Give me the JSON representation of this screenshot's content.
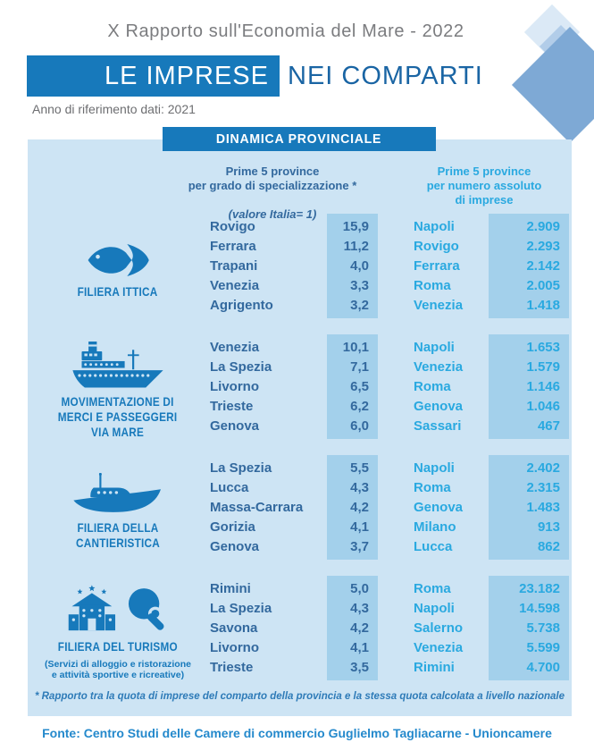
{
  "page": {
    "report_title": "X Rapporto sull'Economia del Mare - 2022",
    "banner": {
      "highlight": "LE IMPRESE",
      "rest": "NEI COMPARTI"
    },
    "reference_note": "Anno di riferimento dati: 2021",
    "panel_title": "DINAMICA PROVINCIALE",
    "col_left_header": "Prime 5 province\nper grado di specializzazione *",
    "col_left_header_note": "(valore Italia= 1)",
    "col_right_header": "Prime 5 province\nper numero assoluto\ndi imprese",
    "footnote": "* Rapporto tra la quota di imprese del comparto della provincia e la stessa quota calcolata a livello nazionale",
    "source": "Fonte: Centro Studi delle Camere di commercio Guglielmo Tagliacarne - Unioncamere"
  },
  "sections": [
    {
      "label": "FILIERA ITTICA",
      "sublabel": "",
      "icon": "fish-icon",
      "specializzazione": [
        [
          "Rovigo",
          "15,9"
        ],
        [
          "Ferrara",
          "11,2"
        ],
        [
          "Trapani",
          "4,0"
        ],
        [
          "Venezia",
          "3,3"
        ],
        [
          "Agrigento",
          "3,2"
        ]
      ],
      "numero_imprese": [
        [
          "Napoli",
          "2.909"
        ],
        [
          "Rovigo",
          "2.293"
        ],
        [
          "Ferrara",
          "2.142"
        ],
        [
          "Roma",
          "2.005"
        ],
        [
          "Venezia",
          "1.418"
        ]
      ]
    },
    {
      "label": "MOVIMENTAZIONE DI\nMERCI E PASSEGGERI\nVIA MARE",
      "sublabel": "",
      "icon": "ferry-icon",
      "specializzazione": [
        [
          "Venezia",
          "10,1"
        ],
        [
          "La Spezia",
          "7,1"
        ],
        [
          "Livorno",
          "6,5"
        ],
        [
          "Trieste",
          "6,2"
        ],
        [
          "Genova",
          "6,0"
        ]
      ],
      "numero_imprese": [
        [
          "Napoli",
          "1.653"
        ],
        [
          "Venezia",
          "1.579"
        ],
        [
          "Roma",
          "1.146"
        ],
        [
          "Genova",
          "1.046"
        ],
        [
          "Sassari",
          "467"
        ]
      ]
    },
    {
      "label": "FILIERA DELLA\nCANTIERISTICA",
      "sublabel": "",
      "icon": "yacht-icon",
      "specializzazione": [
        [
          "La Spezia",
          "5,5"
        ],
        [
          "Lucca",
          "4,3"
        ],
        [
          "Massa-Carrara",
          "4,2"
        ],
        [
          "Gorizia",
          "4,1"
        ],
        [
          "Genova",
          "3,7"
        ]
      ],
      "numero_imprese": [
        [
          "Napoli",
          "2.402"
        ],
        [
          "Roma",
          "2.315"
        ],
        [
          "Genova",
          "1.483"
        ],
        [
          "Milano",
          "913"
        ],
        [
          "Lucca",
          "862"
        ]
      ]
    },
    {
      "label": "FILIERA DEL TURISMO",
      "sublabel": "(Servizi di alloggio e ristorazione\ne attività sportive e ricreative)",
      "icon": "hotel-and-table-tennis-icon",
      "specializzazione": [
        [
          "Rimini",
          "5,0"
        ],
        [
          "La Spezia",
          "4,3"
        ],
        [
          "Savona",
          "4,2"
        ],
        [
          "Livorno",
          "4,1"
        ],
        [
          "Trieste",
          "3,5"
        ]
      ],
      "numero_imprese": [
        [
          "Roma",
          "23.182"
        ],
        [
          "Napoli",
          "14.598"
        ],
        [
          "Salerno",
          "5.738"
        ],
        [
          "Venezia",
          "5.599"
        ],
        [
          "Rimini",
          "4.700"
        ]
      ]
    }
  ],
  "colors": {
    "primary_blue": "#1779bb",
    "banner_text_blue": "#1a65a4",
    "panel_bg": "#cde4f4",
    "value_strip_bg": "#a3d0eb",
    "specializzazione_text": "#33699e",
    "numero_imprese_text": "#2aa9e0",
    "title_gray": "#7b7c7f",
    "footnote_blue": "#2e7bb8",
    "source_blue": "#2489cc"
  }
}
